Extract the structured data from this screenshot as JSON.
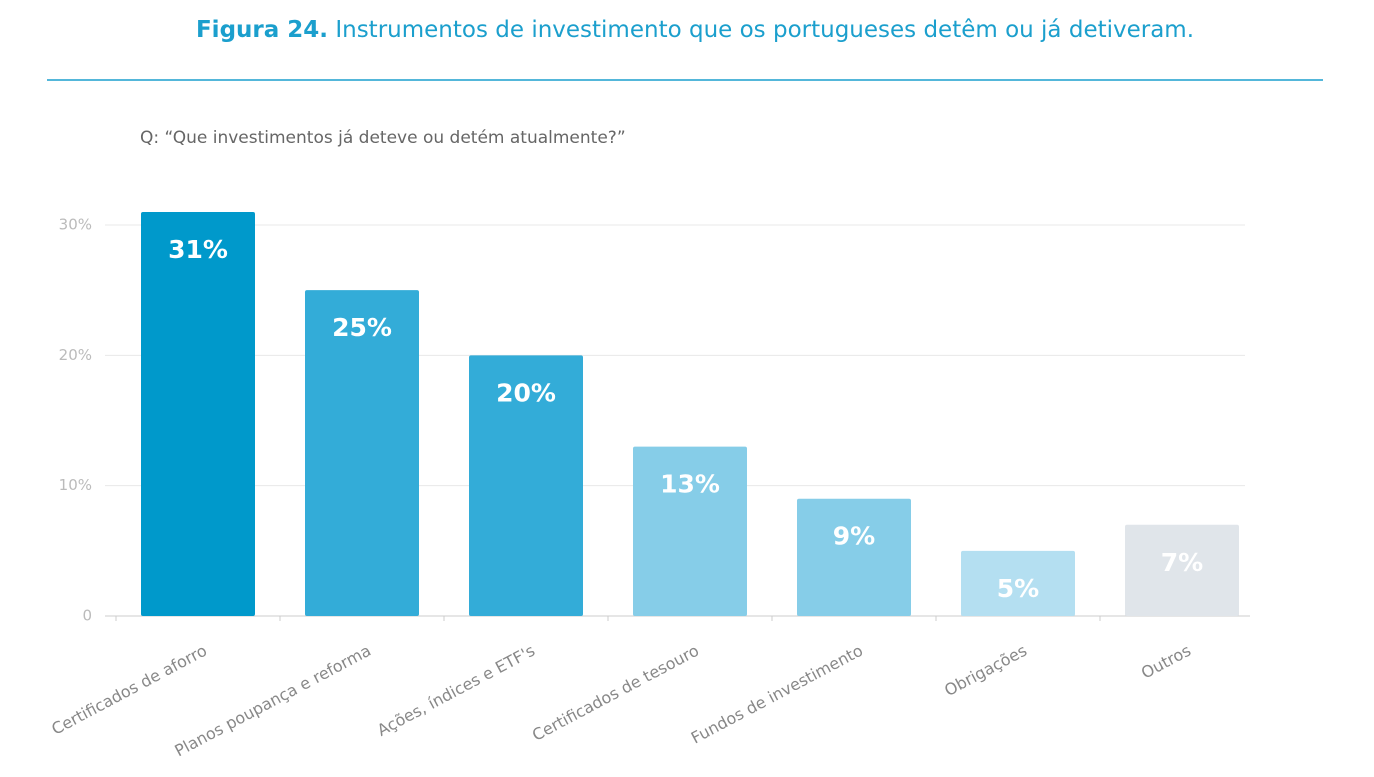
{
  "chart_data": {
    "type": "bar",
    "title_label": "Figura 24.",
    "title": "Instrumentos de investimento que os portugueses detêm ou já detiveram.",
    "subtitle": "Q: “Que investimentos já deteve ou detém atualmente?”",
    "categories": [
      "Certificados de aforro",
      "Planos poupança e reforma",
      "Ações, índices e ETF's",
      "Certificados de tesouro",
      "Fundos de investimento",
      "Obrigações",
      "Outros"
    ],
    "values": [
      31,
      25,
      20,
      13,
      9,
      5,
      7
    ],
    "value_labels": [
      "31%",
      "25%",
      "20%",
      "13%",
      "9%",
      "5%",
      "7%"
    ],
    "colors": [
      "#0099cb",
      "#33acd8",
      "#33acd8",
      "#86cde8",
      "#86cde8",
      "#b4dff1",
      "#e0e5ea"
    ],
    "ylim": [
      0,
      30
    ],
    "yticks": [
      0,
      {
        "value": 10,
        "label": "10%"
      },
      {
        "value": 20,
        "label": "20%"
      },
      {
        "value": 30,
        "label": "30%"
      }
    ],
    "grid": true
  }
}
